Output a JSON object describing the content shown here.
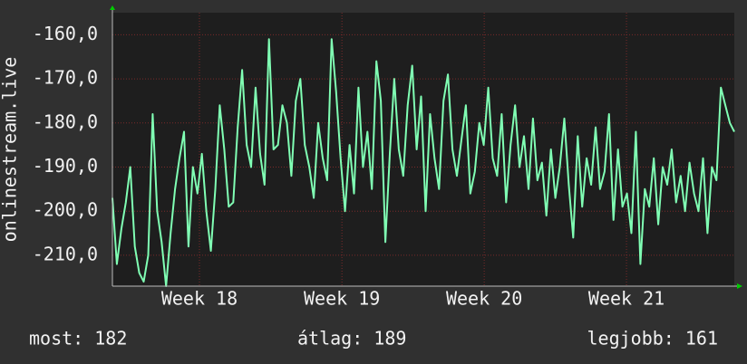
{
  "chart_data": {
    "type": "line",
    "y_label": "onlinestream.live",
    "ylim": [
      -217,
      -155
    ],
    "yticks": [
      {
        "value": -160,
        "label": "-160,0"
      },
      {
        "value": -170,
        "label": "-170,0"
      },
      {
        "value": -180,
        "label": "-180,0"
      },
      {
        "value": -190,
        "label": "-190,0"
      },
      {
        "value": -200,
        "label": "-200,0"
      },
      {
        "value": -210,
        "label": "-210,0"
      }
    ],
    "xlim": [
      0,
      139
    ],
    "xticks": [
      {
        "value": 19.45,
        "label": "Week 18"
      },
      {
        "value": 51.3,
        "label": "Week 19"
      },
      {
        "value": 83.1,
        "label": "Week 20"
      },
      {
        "value": 114.9,
        "label": "Week 21"
      }
    ],
    "grid": true,
    "series": [
      {
        "color": "#80ffb4",
        "values": [
          -197,
          -212,
          -204,
          -198,
          -190,
          -208,
          -214,
          -216,
          -210,
          -178,
          -200,
          -207,
          -217,
          -205,
          -195,
          -188,
          -182,
          -208,
          -190,
          -196,
          -187,
          -200,
          -209,
          -195,
          -176,
          -186,
          -199,
          -198,
          -181,
          -168,
          -185,
          -190,
          -172,
          -187,
          -194,
          -161,
          -186,
          -185,
          -176,
          -180,
          -192,
          -175,
          -170,
          -185,
          -190,
          -197,
          -180,
          -188,
          -193,
          -161,
          -173,
          -188,
          -200,
          -185,
          -196,
          -172,
          -190,
          -182,
          -195,
          -166,
          -175,
          -207,
          -187,
          -170,
          -186,
          -192,
          -176,
          -167,
          -186,
          -174,
          -200,
          -178,
          -188,
          -195,
          -175,
          -169,
          -186,
          -192,
          -184,
          -176,
          -196,
          -191,
          -180,
          -185,
          -172,
          -188,
          -192,
          -178,
          -198,
          -185,
          -176,
          -190,
          -183,
          -195,
          -179,
          -193,
          -189,
          -201,
          -186,
          -197,
          -190,
          -179,
          -194,
          -206,
          -183,
          -199,
          -188,
          -194,
          -181,
          -195,
          -191,
          -178,
          -202,
          -186,
          -199,
          -196,
          -205,
          -182,
          -212,
          -195,
          -199,
          -188,
          -203,
          -190,
          -194,
          -186,
          -198,
          -192,
          -200,
          -189,
          -196,
          -200,
          -188,
          -205,
          -190,
          -193,
          -172,
          -176,
          -180,
          -182
        ]
      }
    ],
    "footer": [
      "most: 182",
      "átlag: 189",
      "legjobb: 161"
    ]
  }
}
